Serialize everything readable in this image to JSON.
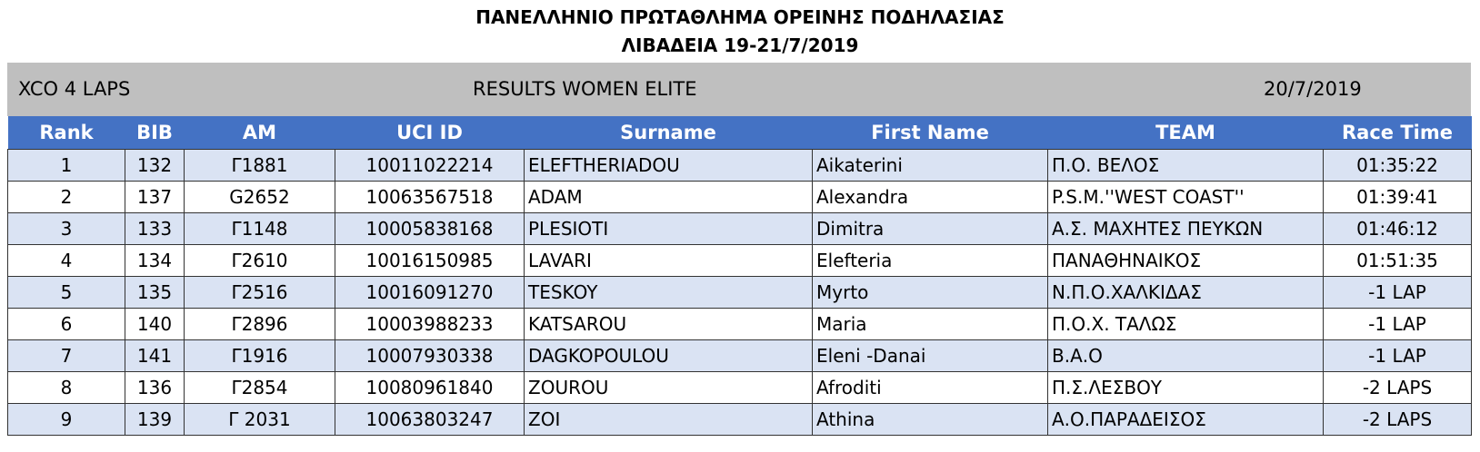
{
  "header": {
    "title": [
      "ΠΑΝΕΛΛΗΝΙΟ ΠΡΩΤΑΘΛΗΜΑ  ΟΡΕΙΝΗΣ ΠΟΔΗΛΑΣΙΑΣ",
      "ΛΙΒΑΔΕΙΑ 19-21/7/2019"
    ]
  },
  "info": {
    "race": "XCO 4 LAPS",
    "category": "RESULTS WOMEN ELITE",
    "date": "20/7/2019"
  },
  "table": {
    "columns": [
      "Rank",
      "BIB",
      "AM",
      "UCI ID",
      "Surname",
      "First Name",
      "TEAM",
      "Race Time"
    ],
    "rows": [
      [
        "1",
        "132",
        "Γ1881",
        "10011022214",
        "ELEFTHERIADOU",
        "Aikaterini",
        "Π.Ο. ΒΕΛΟΣ",
        "01:35:22"
      ],
      [
        "2",
        "137",
        "G2652",
        "10063567518",
        "ADAM",
        "Alexandra",
        "P.S.M.''WEST COAST''",
        "01:39:41"
      ],
      [
        "3",
        "133",
        "Γ1148",
        "10005838168",
        "PLESIOTI",
        "Dimitra",
        "Α.Σ. ΜΑΧΗΤΕΣ ΠΕΥΚΩΝ",
        "01:46:12"
      ],
      [
        "4",
        "134",
        "Γ2610",
        "10016150985",
        "LAVARI",
        "Elefteria",
        "ΠΑΝΑΘΗΝΑΙΚΟΣ",
        "01:51:35"
      ],
      [
        "5",
        "135",
        "Γ2516",
        "10016091270",
        "TESKOY",
        "Myrto",
        "Ν.Π.Ο.ΧΑΛΚΙΔΑΣ",
        "-1 LAP"
      ],
      [
        "6",
        "140",
        "Γ2896",
        "10003988233",
        "KATSAROU",
        "Maria",
        "Π.Ο.Χ. ΤΑΛΩΣ",
        "-1 LAP"
      ],
      [
        "7",
        "141",
        "Γ1916",
        "10007930338",
        "DAGKOPOULOU",
        "Eleni -Danai",
        "Β.Α.Ο",
        "-1 LAP"
      ],
      [
        "8",
        "136",
        "Γ2854",
        "10080961840",
        "ZOUROU",
        "Afroditi",
        "Π.Σ.ΛΕΣΒΟΥ",
        "-2 LAPS"
      ],
      [
        "9",
        "139",
        "Γ 2031",
        "10063803247",
        "ZOI",
        "Athina",
        "Α.Ο.ΠΑΡΑΔΕΙΣΟΣ",
        "-2 LAPS"
      ]
    ]
  }
}
